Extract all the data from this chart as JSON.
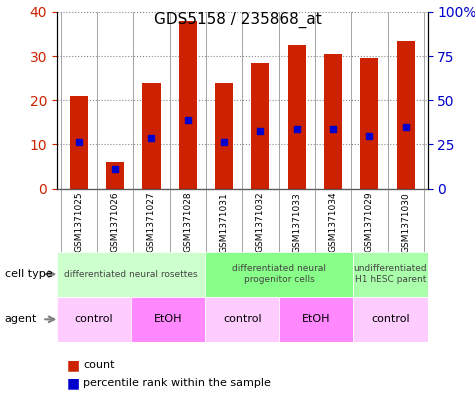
{
  "title": "GDS5158 / 235868_at",
  "samples": [
    "GSM1371025",
    "GSM1371026",
    "GSM1371027",
    "GSM1371028",
    "GSM1371031",
    "GSM1371032",
    "GSM1371033",
    "GSM1371034",
    "GSM1371029",
    "GSM1371030"
  ],
  "counts": [
    21,
    6,
    24,
    38,
    24,
    28.5,
    32.5,
    30.5,
    29.5,
    33.5
  ],
  "percentile_ranks": [
    10.5,
    4.5,
    11.5,
    15.5,
    10.5,
    13,
    13.5,
    13.5,
    12,
    14
  ],
  "bar_color": "#cc2200",
  "percentile_color": "#0000cc",
  "cell_type_groups": [
    {
      "label": "differentiated neural rosettes",
      "start": 0,
      "end": 4,
      "color": "#ccffcc"
    },
    {
      "label": "differentiated neural\nprogenitor cells",
      "start": 4,
      "end": 8,
      "color": "#88ff88"
    },
    {
      "label": "undifferentiated\nH1 hESC parent",
      "start": 8,
      "end": 10,
      "color": "#aaffaa"
    }
  ],
  "agent_groups": [
    {
      "label": "control",
      "start": 0,
      "end": 2,
      "color": "#ffccff"
    },
    {
      "label": "EtOH",
      "start": 2,
      "end": 4,
      "color": "#ff88ff"
    },
    {
      "label": "control",
      "start": 4,
      "end": 6,
      "color": "#ffccff"
    },
    {
      "label": "EtOH",
      "start": 6,
      "end": 8,
      "color": "#ff88ff"
    },
    {
      "label": "control",
      "start": 8,
      "end": 10,
      "color": "#ffccff"
    }
  ],
  "ylim_left": [
    0,
    40
  ],
  "ylim_right": [
    0,
    100
  ],
  "left_yticks": [
    0,
    10,
    20,
    30,
    40
  ],
  "right_yticks": [
    0,
    25,
    50,
    75,
    100
  ],
  "right_yticklabels": [
    "0",
    "25",
    "50",
    "75",
    "100%"
  ],
  "left_tick_color": "#cc2200",
  "right_tick_color": "#0000cc",
  "grid_color": "#888888",
  "bg_color": "#ffffff",
  "bar_width": 0.5
}
